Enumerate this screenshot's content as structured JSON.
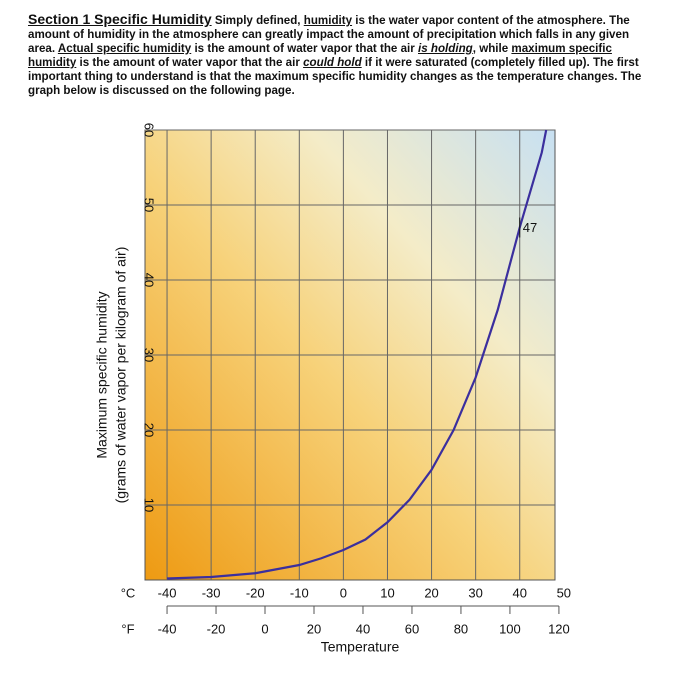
{
  "document": {
    "heading": "Section 1 Specific Humidity",
    "paragraph": [
      "Simply defined, ",
      "humidity",
      " is the water vapor content of the atmosphere. The amount of humidity in the atmosphere can greatly impact the amount of precipitation which falls in any given area. ",
      "Actual specific humidity",
      " is the amount of water vapor that the air ",
      "is holding",
      ", while ",
      "maximum specific humidity",
      " is the amount of water vapor that the air ",
      "could hold",
      " if it were saturated (completely filled up). The first important thing to understand is that the maximum specific humidity changes as the temperature changes. The graph below is discussed on the following page."
    ]
  },
  "chart_data": {
    "type": "line",
    "ylabel": [
      "Maximum specific humidity",
      "(grams of water vapor per kilogram of air)"
    ],
    "xlabel": "Temperature",
    "x_unit": "°C",
    "x2_unit": "°F",
    "x": [
      -40,
      -30,
      -20,
      -10,
      -5,
      0,
      5,
      10,
      15,
      20,
      25,
      30,
      35,
      40,
      45,
      46
    ],
    "series": [
      {
        "color": "#3b2f9e",
        "values": [
          0.2,
          0.4,
          0.9,
          2,
          2.9,
          4,
          5.4,
          7.7,
          10.7,
          14.7,
          20,
          27,
          36,
          47,
          57,
          60
        ]
      }
    ],
    "annotation": {
      "text": "47",
      "x": 40,
      "y": 47
    },
    "xlim": [
      -45,
      48
    ],
    "xticks": [
      -40,
      -30,
      -20,
      -10,
      0,
      10,
      20,
      30,
      40,
      50
    ],
    "x2ticks": [
      -40,
      -20,
      0,
      20,
      40,
      60,
      80,
      100,
      120
    ],
    "ylim": [
      0,
      60
    ],
    "yticks": [
      10,
      20,
      30,
      40,
      50,
      60
    ],
    "grid": true
  }
}
